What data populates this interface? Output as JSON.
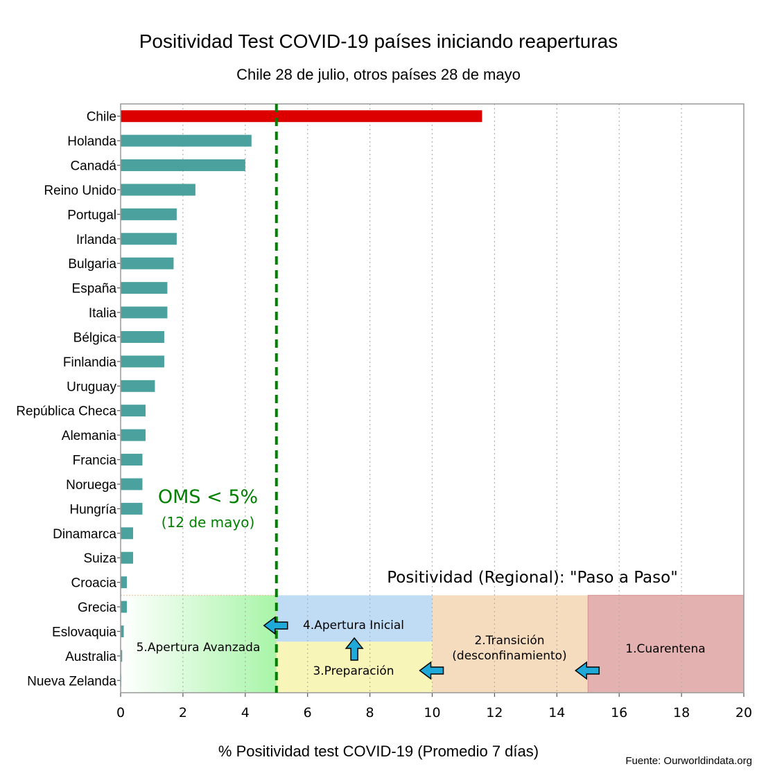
{
  "chart_data": {
    "type": "bar",
    "orientation": "horizontal",
    "title": "Positividad Test COVID-19 países iniciando reaperturas",
    "subtitle": "Chile 28 de julio, otros países 28 de mayo",
    "xlabel": "% Positividad test COVID-19 (Promedio 7 días)",
    "source": "Fuente: Ourworldindata.org",
    "xlim": [
      0,
      20
    ],
    "xticks": [
      "0",
      "2",
      "4",
      "6",
      "8",
      "10",
      "12",
      "14",
      "16",
      "18",
      "20"
    ],
    "grid": true,
    "categories": [
      "Chile",
      "Holanda",
      "Canadá",
      "Reino Unido",
      "Portugal",
      "Irlanda",
      "Bulgaria",
      "España",
      "Italia",
      "Bélgica",
      "Finlandia",
      "Uruguay",
      "República Checa",
      "Alemania",
      "Francia",
      "Noruega",
      "Hungría",
      "Dinamarca",
      "Suiza",
      "Croacia",
      "Grecia",
      "Eslovaquia",
      "Australia",
      "Nueva Zelanda"
    ],
    "values": [
      11.6,
      4.2,
      4.0,
      2.4,
      1.8,
      1.8,
      1.7,
      1.5,
      1.5,
      1.4,
      1.4,
      1.1,
      0.8,
      0.8,
      0.7,
      0.7,
      0.7,
      0.4,
      0.4,
      0.2,
      0.2,
      0.1,
      0.05,
      0.02
    ],
    "colors": {
      "highlight": "#dd0000",
      "bar": "#4aa19e",
      "threshold": "#008000"
    },
    "threshold": {
      "value": 5,
      "label": "OMS < 5%",
      "sublabel": "(12 de mayo)"
    },
    "regional_title": "Positividad (Regional): \"Paso a Paso\"",
    "phases": [
      {
        "name": "5.Apertura Avanzada",
        "from": 0,
        "to": 5,
        "color": "#a8f5a8"
      },
      {
        "name": "4.Apertura Inicial",
        "from": 5,
        "to": 10,
        "color": "#c0dcf5"
      },
      {
        "name": "3.Preparación",
        "from": 5,
        "to": 10,
        "color": "#f8f5b8"
      },
      {
        "name": "2.Transición",
        "name2": "(desconfinamiento)",
        "from": 10,
        "to": 15,
        "color": "#f5dcbe"
      },
      {
        "name": "1.Cuarentena",
        "from": 15,
        "to": 20,
        "color": "#e4b1b1"
      }
    ],
    "arrow_color": "#1fa9d8"
  }
}
